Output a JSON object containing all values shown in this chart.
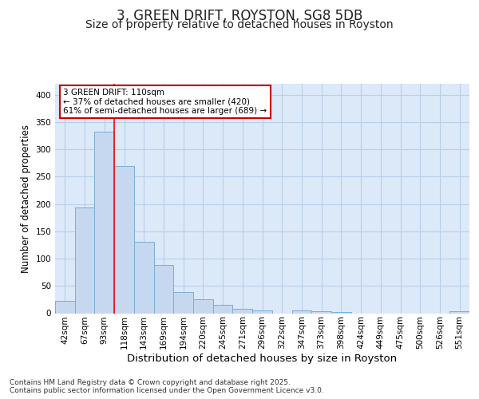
{
  "title": "3, GREEN DRIFT, ROYSTON, SG8 5DB",
  "subtitle": "Size of property relative to detached houses in Royston",
  "xlabel": "Distribution of detached houses by size in Royston",
  "ylabel": "Number of detached properties",
  "categories": [
    "42sqm",
    "67sqm",
    "93sqm",
    "118sqm",
    "143sqm",
    "169sqm",
    "194sqm",
    "220sqm",
    "245sqm",
    "271sqm",
    "296sqm",
    "322sqm",
    "347sqm",
    "373sqm",
    "398sqm",
    "424sqm",
    "449sqm",
    "475sqm",
    "500sqm",
    "526sqm",
    "551sqm"
  ],
  "values": [
    22,
    193,
    332,
    270,
    131,
    88,
    38,
    25,
    15,
    8,
    5,
    0,
    5,
    3,
    2,
    0,
    0,
    0,
    0,
    0,
    3
  ],
  "bar_color": "#c5d8f0",
  "bar_edge_color": "#7aadd4",
  "background_color": "#dce9f8",
  "fig_background_color": "#ffffff",
  "grid_color": "#b8cfe8",
  "red_line_x": 2.5,
  "annotation_text": "3 GREEN DRIFT: 110sqm\n← 37% of detached houses are smaller (420)\n61% of semi-detached houses are larger (689) →",
  "annotation_box_color": "#ffffff",
  "annotation_box_edge": "#cc0000",
  "ylim": [
    0,
    420
  ],
  "yticks": [
    0,
    50,
    100,
    150,
    200,
    250,
    300,
    350,
    400
  ],
  "footer_text": "Contains HM Land Registry data © Crown copyright and database right 2025.\nContains public sector information licensed under the Open Government Licence v3.0.",
  "title_fontsize": 12,
  "subtitle_fontsize": 10,
  "xlabel_fontsize": 9.5,
  "ylabel_fontsize": 8.5,
  "tick_fontsize": 7.5,
  "annotation_fontsize": 7.5,
  "footer_fontsize": 6.5
}
